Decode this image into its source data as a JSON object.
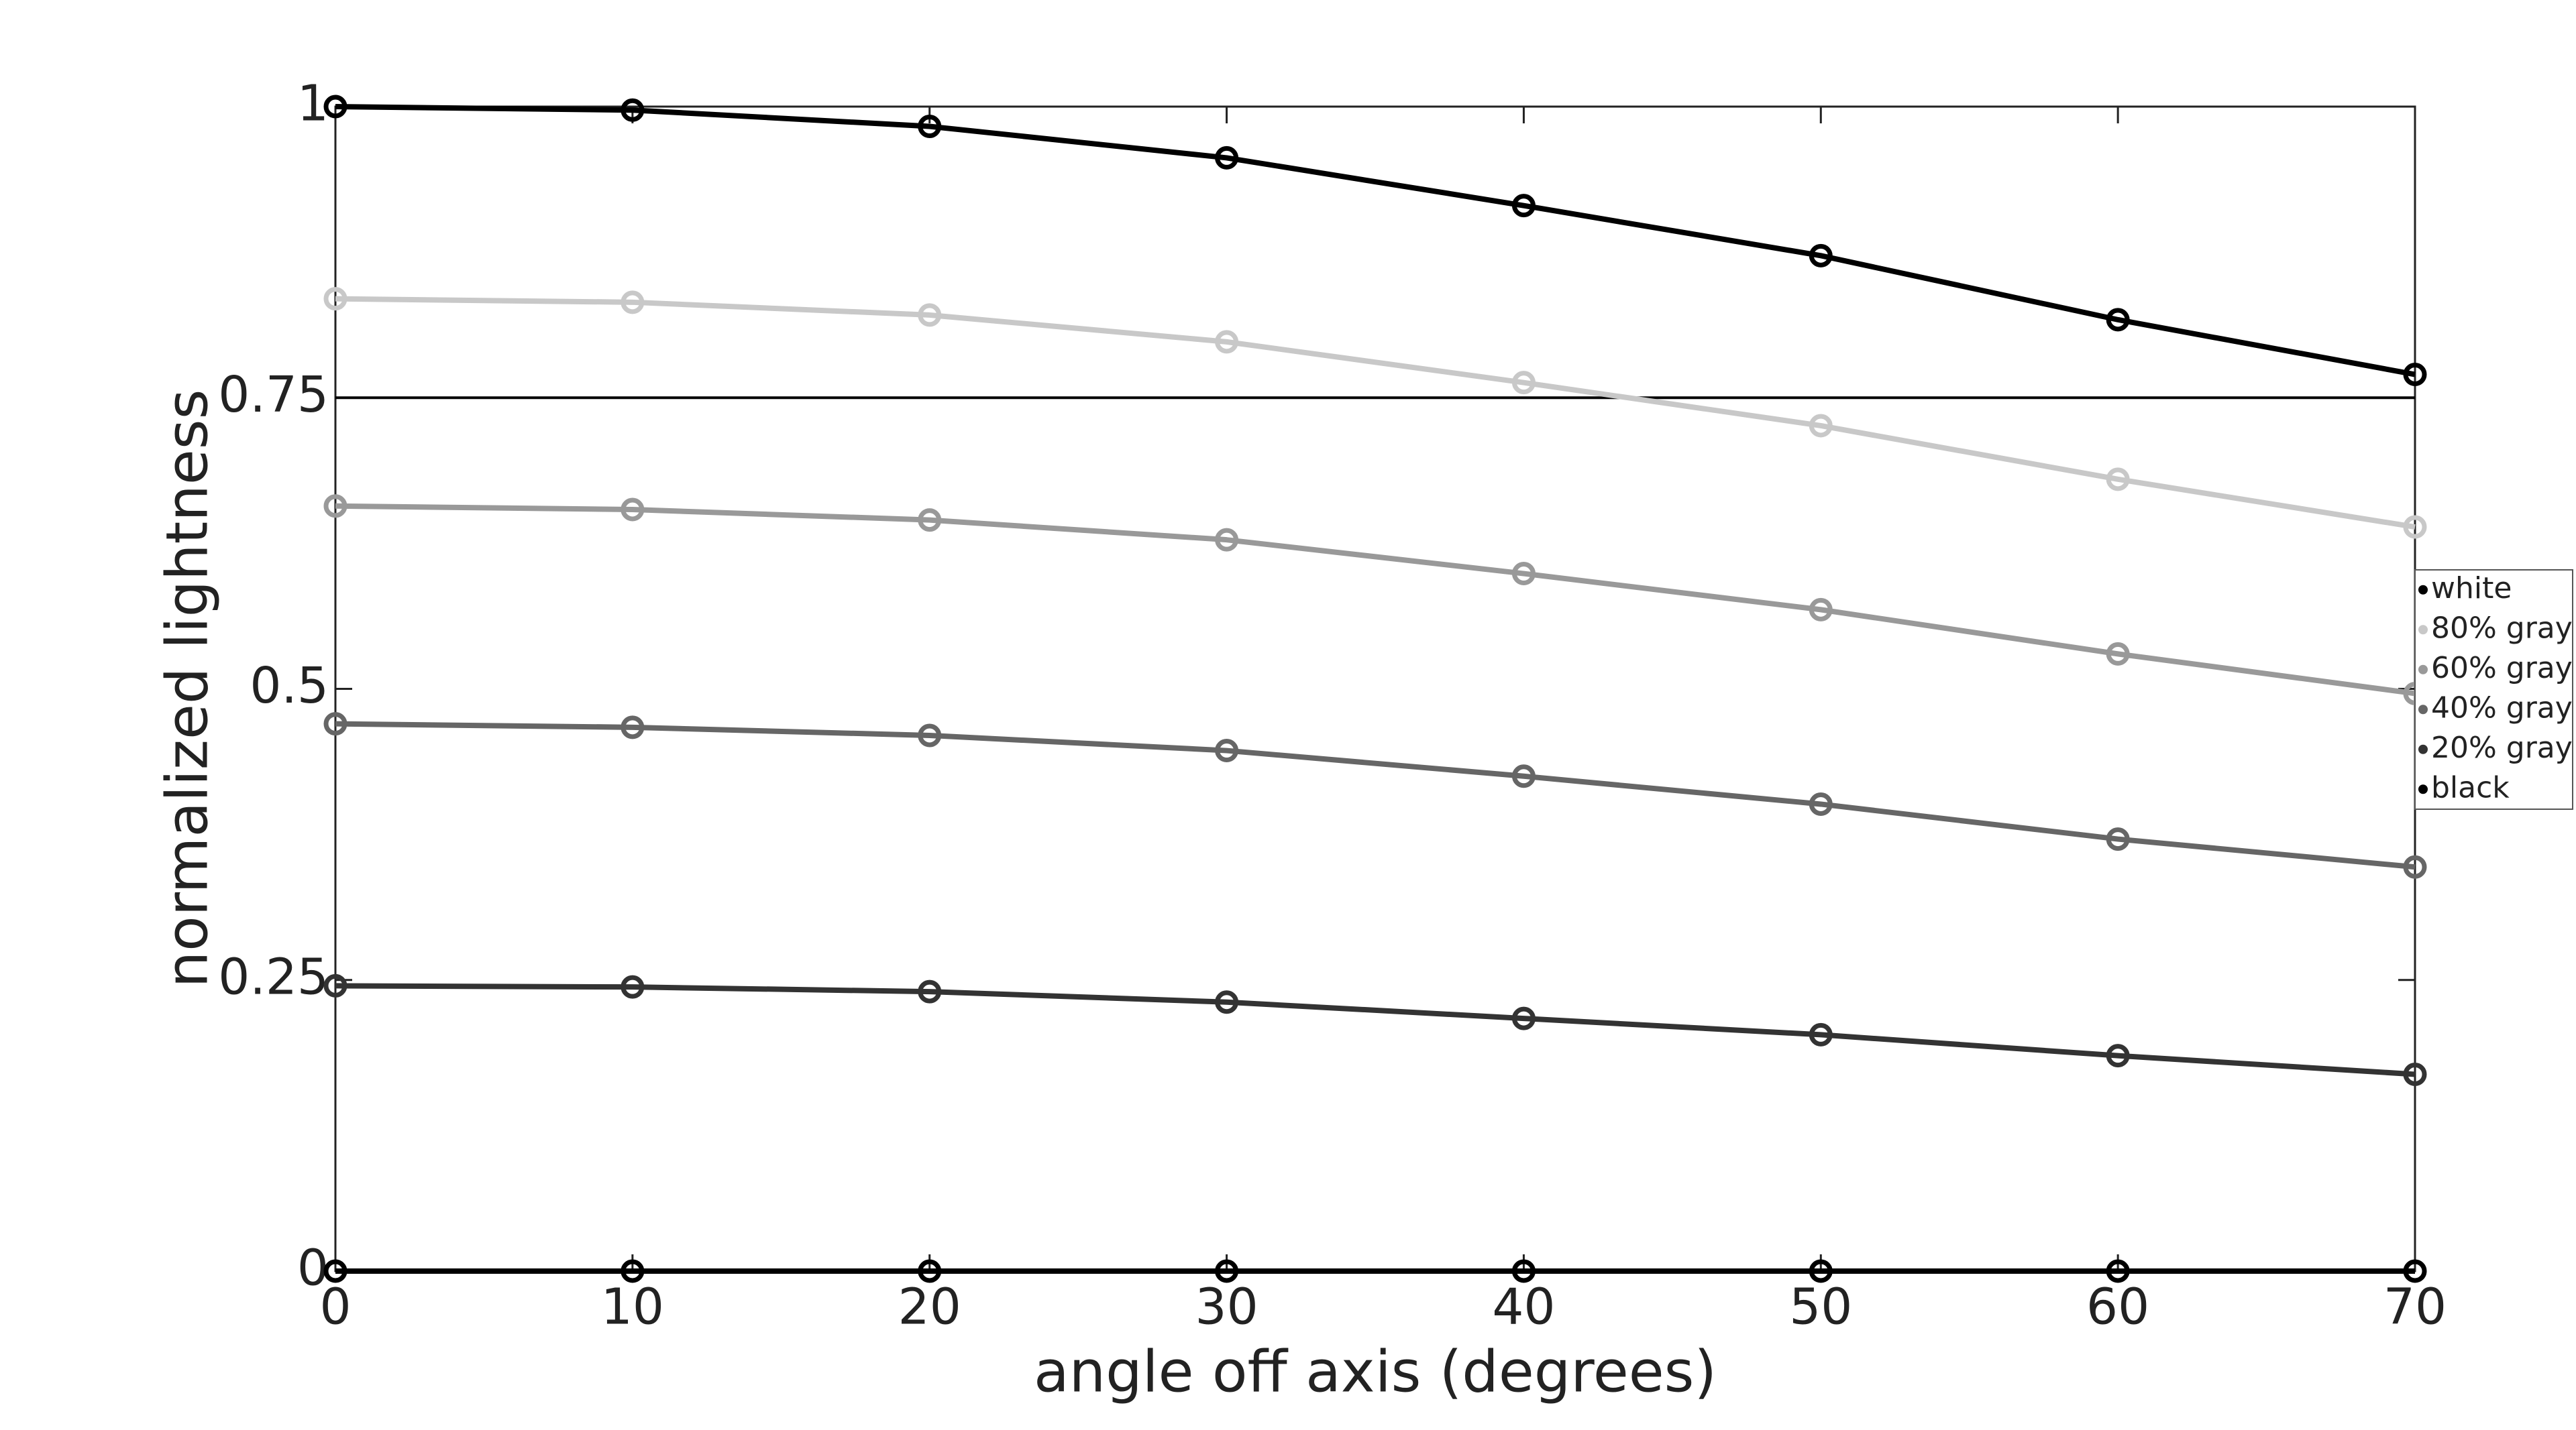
{
  "chart_data": {
    "type": "line",
    "x_label": "angle off axis (degrees)",
    "y_label": "normalized lightness",
    "x": [
      0,
      10,
      20,
      30,
      40,
      50,
      60,
      70
    ],
    "series": [
      {
        "name": "white",
        "color": "#000000",
        "values": [
          1.0,
          0.997,
          0.983,
          0.956,
          0.915,
          0.872,
          0.817,
          0.77
        ]
      },
      {
        "name": "80% gray",
        "color": "#c8c8c8",
        "values": [
          0.835,
          0.832,
          0.821,
          0.798,
          0.763,
          0.726,
          0.68,
          0.639
        ]
      },
      {
        "name": "60% gray",
        "color": "#999999",
        "values": [
          0.657,
          0.654,
          0.645,
          0.628,
          0.599,
          0.568,
          0.53,
          0.496
        ]
      },
      {
        "name": "40% gray",
        "color": "#666666",
        "values": [
          0.47,
          0.467,
          0.46,
          0.447,
          0.425,
          0.401,
          0.371,
          0.347
        ]
      },
      {
        "name": "20% gray",
        "color": "#333333",
        "values": [
          0.245,
          0.244,
          0.24,
          0.231,
          0.217,
          0.203,
          0.185,
          0.169
        ]
      },
      {
        "name": "black",
        "color": "#000000",
        "values": [
          0,
          0,
          0,
          0,
          0,
          0,
          0,
          0
        ]
      }
    ],
    "xlim": [
      0,
      70
    ],
    "xticks": [
      0,
      10,
      20,
      30,
      40,
      50,
      60,
      70
    ],
    "ylim": [
      0,
      1
    ],
    "yticks": [
      0,
      0.25,
      0.5,
      0.75,
      1
    ],
    "hline": 0.75,
    "legend": "right"
  }
}
